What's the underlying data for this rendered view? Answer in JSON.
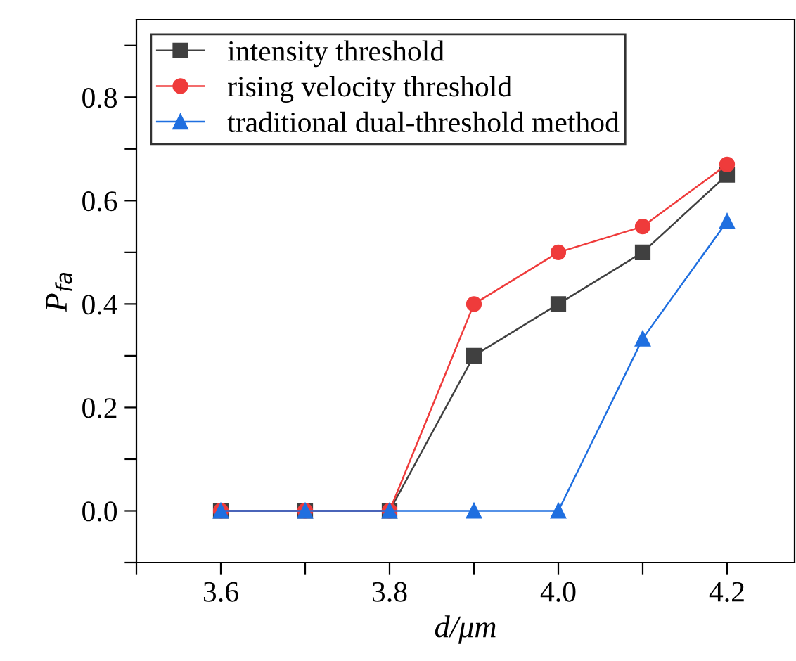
{
  "chart_data": {
    "type": "line",
    "xlabel": "d/μm",
    "ylabel": "P$_{fa}$",
    "x": [
      3.6,
      3.7,
      3.8,
      3.9,
      4.0,
      4.1,
      4.2
    ],
    "series": [
      {
        "name": "intensity threshold",
        "color": "#404040",
        "marker": "square",
        "values": [
          0,
          0,
          0,
          0.3,
          0.4,
          0.5,
          0.65
        ]
      },
      {
        "name": "rising velocity threshold",
        "color": "#ef3b3b",
        "marker": "circle",
        "values": [
          0,
          0,
          0,
          0.4,
          0.5,
          0.55,
          0.67
        ]
      },
      {
        "name": "traditional dual-threshold method",
        "color": "#1f6fe0",
        "marker": "triangle",
        "values": [
          0,
          0,
          0,
          0,
          0,
          0.333,
          0.56
        ]
      }
    ],
    "xlim": [
      3.5,
      4.28
    ],
    "ylim": [
      -0.1,
      0.95
    ],
    "xticks": [
      {
        "value": 3.5,
        "label": null
      },
      3.6,
      {
        "value": 3.7,
        "label": null
      },
      3.8,
      {
        "value": 3.9,
        "label": null
      },
      {
        "value": 4.0,
        "label": "4.0"
      },
      {
        "value": 4.1,
        "label": null
      },
      4.2
    ],
    "yticks": [
      {
        "value": -0.1,
        "label": null
      },
      {
        "value": 0.0,
        "label": "0.0"
      },
      {
        "value": 0.1,
        "label": null
      },
      0.2,
      {
        "value": 0.3,
        "label": null
      },
      0.4,
      {
        "value": 0.5,
        "label": null
      },
      0.6,
      {
        "value": 0.7,
        "label": null
      },
      0.8,
      {
        "value": 0.9,
        "label": null
      }
    ],
    "grid": false,
    "legend": "top left",
    "line_style": "solid"
  }
}
